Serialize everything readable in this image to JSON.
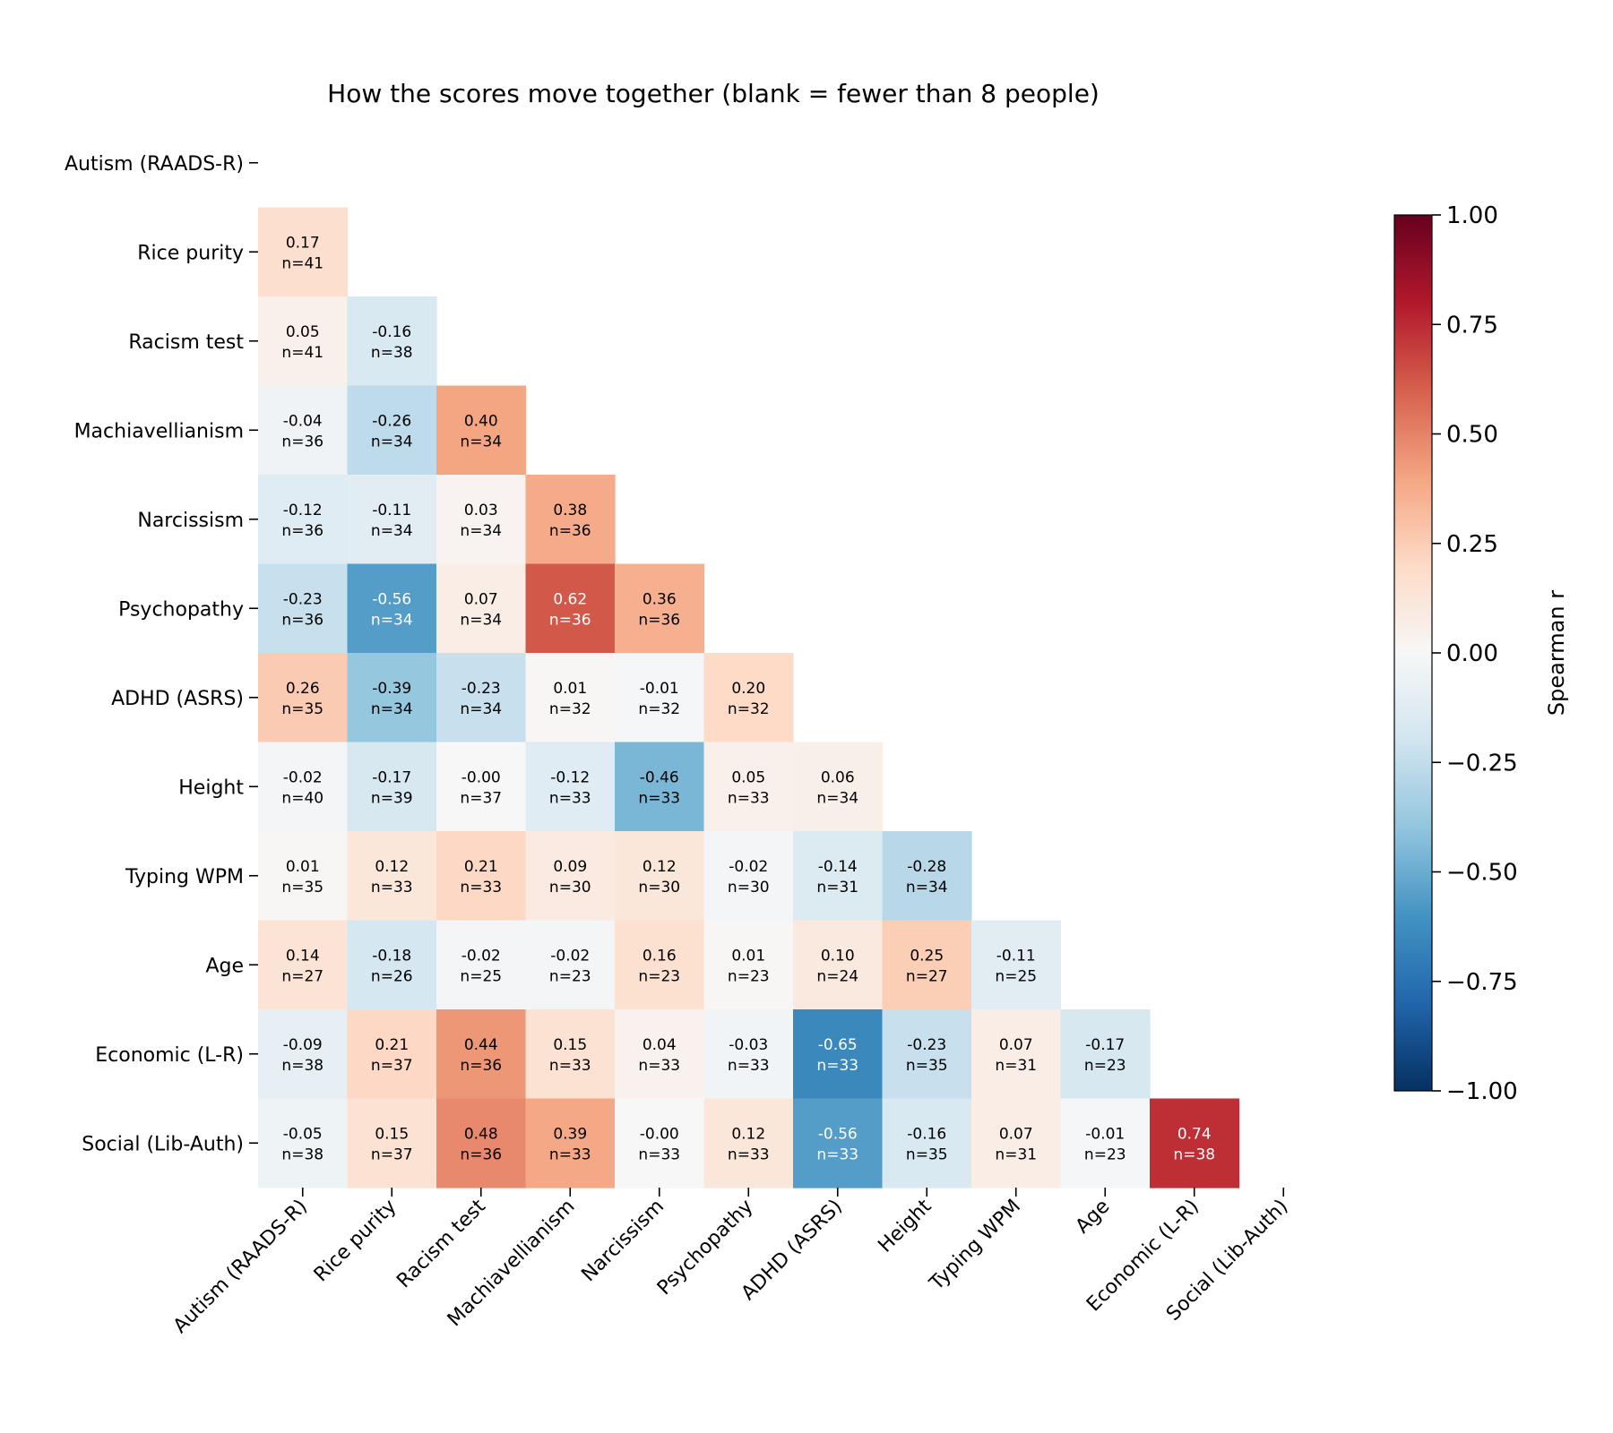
{
  "chart_data": {
    "type": "heatmap",
    "title": "How the scores move together (blank = fewer than 8 people)",
    "variables": [
      "Autism (RAADS-R)",
      "Rice purity",
      "Racism test",
      "Machiavellianism",
      "Narcissism",
      "Psychopathy",
      "ADHD (ASRS)",
      "Height",
      "Typing WPM",
      "Age",
      "Economic (L-R)",
      "Social (Lib-Auth)"
    ],
    "correlations": [
      [],
      [
        0.17
      ],
      [
        0.05,
        -0.16
      ],
      [
        -0.04,
        -0.26,
        0.4
      ],
      [
        -0.12,
        -0.11,
        0.03,
        0.38
      ],
      [
        -0.23,
        -0.56,
        0.07,
        0.62,
        0.36
      ],
      [
        0.26,
        -0.39,
        -0.23,
        0.01,
        -0.01,
        0.2
      ],
      [
        -0.02,
        -0.17,
        -0.0,
        -0.12,
        -0.46,
        0.05,
        0.06
      ],
      [
        0.01,
        0.12,
        0.21,
        0.09,
        0.12,
        -0.02,
        -0.14,
        -0.28
      ],
      [
        0.14,
        -0.18,
        -0.02,
        -0.02,
        0.16,
        0.01,
        0.1,
        0.25,
        -0.11
      ],
      [
        -0.09,
        0.21,
        0.44,
        0.15,
        0.04,
        -0.03,
        -0.65,
        -0.23,
        0.07,
        -0.17
      ],
      [
        -0.05,
        0.15,
        0.48,
        0.39,
        -0.0,
        0.12,
        -0.56,
        -0.16,
        0.07,
        -0.01,
        0.74
      ]
    ],
    "cell_text": [
      [],
      [
        "0.17"
      ],
      [
        "0.05",
        "-0.16"
      ],
      [
        "-0.04",
        "-0.26",
        "0.40"
      ],
      [
        "-0.12",
        "-0.11",
        "0.03",
        "0.38"
      ],
      [
        "-0.23",
        "-0.56",
        "0.07",
        "0.62",
        "0.36"
      ],
      [
        "0.26",
        "-0.39",
        "-0.23",
        "0.01",
        "-0.01",
        "0.20"
      ],
      [
        "-0.02",
        "-0.17",
        "-0.00",
        "-0.12",
        "-0.46",
        "0.05",
        "0.06"
      ],
      [
        "0.01",
        "0.12",
        "0.21",
        "0.09",
        "0.12",
        "-0.02",
        "-0.14",
        "-0.28"
      ],
      [
        "0.14",
        "-0.18",
        "-0.02",
        "-0.02",
        "0.16",
        "0.01",
        "0.10",
        "0.25",
        "-0.11"
      ],
      [
        "-0.09",
        "0.21",
        "0.44",
        "0.15",
        "0.04",
        "-0.03",
        "-0.65",
        "-0.23",
        "0.07",
        "-0.17"
      ],
      [
        "-0.05",
        "0.15",
        "0.48",
        "0.39",
        "-0.00",
        "0.12",
        "-0.56",
        "-0.16",
        "0.07",
        "-0.01",
        "0.74"
      ]
    ],
    "counts": [
      [],
      [
        41
      ],
      [
        41,
        38
      ],
      [
        36,
        34,
        34
      ],
      [
        36,
        34,
        34,
        36
      ],
      [
        36,
        34,
        34,
        36,
        36
      ],
      [
        35,
        34,
        34,
        32,
        32,
        32
      ],
      [
        40,
        39,
        37,
        33,
        33,
        33,
        34
      ],
      [
        35,
        33,
        33,
        30,
        30,
        30,
        31,
        34
      ],
      [
        27,
        26,
        25,
        23,
        23,
        23,
        24,
        27,
        25
      ],
      [
        38,
        37,
        36,
        33,
        33,
        33,
        33,
        35,
        31,
        23
      ],
      [
        38,
        37,
        36,
        33,
        33,
        33,
        33,
        35,
        31,
        23,
        38
      ]
    ],
    "count_prefix": "n=",
    "colorbar": {
      "label": "Spearman r",
      "range": [
        -1,
        1
      ],
      "ticks": [
        1,
        0.75,
        0.5,
        0.25,
        0,
        -0.25,
        -0.5,
        -0.75,
        -1
      ],
      "tick_labels": [
        "1.00",
        "0.75",
        "0.50",
        "0.25",
        "0.00",
        "−0.25",
        "−0.50",
        "−0.75",
        "−1.00"
      ],
      "colormap": "RdBu_r",
      "colors": [
        "#053061",
        "#2166ac",
        "#4393c3",
        "#92c5de",
        "#d1e5f0",
        "#f7f7f7",
        "#fddbc7",
        "#f4a582",
        "#d6604d",
        "#b2182b",
        "#67001f"
      ]
    },
    "legend_placement": "right",
    "grid": false
  }
}
